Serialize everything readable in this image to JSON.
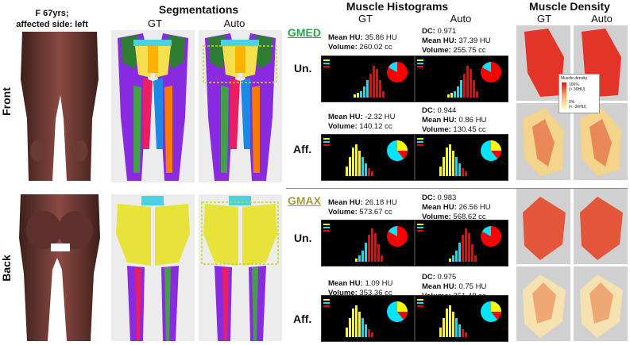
{
  "patient": {
    "line1": "F 67yrs;",
    "line2": "affected side: left"
  },
  "headers": {
    "segmentations": "Segmentations",
    "seg_gt": "GT",
    "seg_auto": "Auto",
    "histograms": "Muscle Histograms",
    "hist_gt": "GT",
    "hist_auto": "Auto",
    "density": "Muscle Density",
    "dens_gt": "GT",
    "dens_auto": "Auto"
  },
  "views": {
    "front": "Front",
    "back": "Back"
  },
  "rows": {
    "un": "Un.",
    "aff": "Aff."
  },
  "muscles": {
    "gmed": "GMED",
    "gmax": "GMAX"
  },
  "colors": {
    "gmed": "#22a84a",
    "gmax": "#a59a3a",
    "fat": "#ffff00",
    "composite": "#00e5ff",
    "muscle": "#ff0000"
  },
  "legend": {
    "title": "Muscle density",
    "top": "100%",
    "top_sub": "(> 30HU)",
    "bottom": "0%",
    "bottom_sub": "(< -30HU)"
  },
  "stats": {
    "gmed_un_gt": {
      "l1k": "Mean HU:",
      "l1v": " 35.86 HU",
      "l2k": "Volume:",
      "l2v": " 260.02 cc"
    },
    "gmed_un_auto": {
      "dck": "DC:",
      "dcv": " 0.971",
      "l1k": "Mean HU:",
      "l1v": " 37.39 HU",
      "l2k": "Volume:",
      "l2v": " 255.75 cc"
    },
    "gmed_aff_gt": {
      "l1k": "Mean HU:",
      "l1v": " -2.32 HU",
      "l2k": "Volume:",
      "l2v": " 140.12 cc"
    },
    "gmed_aff_auto": {
      "dck": "DC:",
      "dcv": " 0.944",
      "l1k": "Mean HU:",
      "l1v": " 0.86 HU",
      "l2k": "Volume:",
      "l2v": " 130.45 cc"
    },
    "gmax_un_gt": {
      "l1k": "Mean HU:",
      "l1v": " 26.18 HU",
      "l2k": "Volume:",
      "l2v": " 573.67 cc"
    },
    "gmax_un_auto": {
      "dck": "DC:",
      "dcv": " 0.983",
      "l1k": "Mean HU:",
      "l1v": " 26.56 HU",
      "l2k": "Volume:",
      "l2v": " 568.62 cc"
    },
    "gmax_aff_gt": {
      "l1k": "Mean HU:",
      "l1v": " 1.09 HU",
      "l2k": "Volume:",
      "l2v": " 353.36 cc"
    },
    "gmax_aff_auto": {
      "dck": "DC:",
      "dcv": " 0.975",
      "l1k": "Mean HU:",
      "l1v": " 0.75 HU",
      "l2k": "Volume:",
      "l2v": " 351.48 cc"
    }
  }
}
